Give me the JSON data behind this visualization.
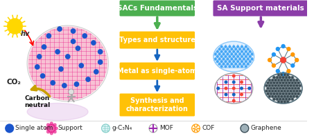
{
  "bg_color": "#ffffff",
  "title_sacs": "SACs Fundamentals",
  "title_sa": "SA Support materials",
  "box1": "Types and structure",
  "box2": "Metal as single-atom",
  "box3": "Synthesis and\ncharacterization",
  "box_color": "#FFC107",
  "box_text_color": "#ffffff",
  "header_sacs_color": "#4CAF50",
  "header_sa_color": "#8B3DA8",
  "arrow_green_color": "#4CAF50",
  "arrow_blue_color": "#1565C0",
  "arrow_purple_color": "#8B3DA8",
  "legend_items": [
    "Single atom",
    "Support",
    "g-C₃N₄",
    "MOF",
    "COF",
    "Graphene"
  ],
  "sphere_color_fill": "#F48FB1",
  "sphere_mesh_color": "#E91E8C",
  "single_atom_color": "#1A55CC",
  "sun_color": "#FFD700",
  "co2_color": "#333333",
  "carbon_neutral_color": "#111111",
  "hv_color": "#333333",
  "gc3n4_bg": "#B2EBF2",
  "gc3n4_mesh": "#4DD0E1",
  "gc3n4_dot": "#90CAF9",
  "mof_color": "#FF9800",
  "mof_center": "#F44336",
  "mof_blue": "#1565C0",
  "cof_bg": "#F8BBD9",
  "cof_h_color": "#F44336",
  "cof_v_color": "#9C27B0",
  "cof_dot_red": "#F44336",
  "cof_dot_blue": "#1565C0",
  "graphene_bg": "#607D8B",
  "graphene_hex": "#37474F",
  "legend_sa_color": "#1A55CC",
  "legend_support_color": "#E91E8C",
  "legend_gc3n4_color": "#80CBC4",
  "legend_mof_color": "#9C27B0",
  "legend_cof_color": "#FF9800",
  "legend_graphene_color": "#607D8B"
}
